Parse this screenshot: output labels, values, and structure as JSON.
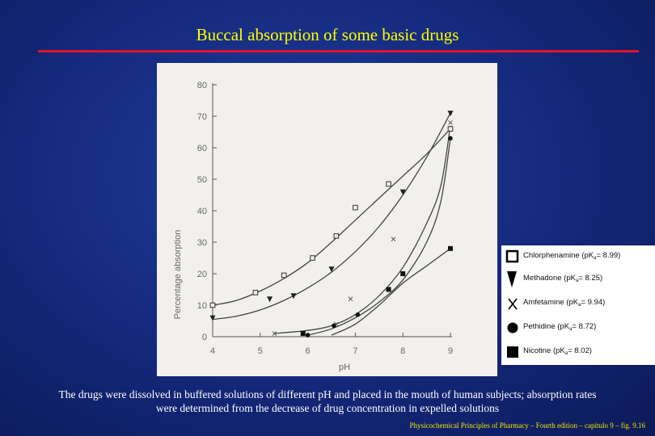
{
  "slide": {
    "title": "Buccal absorption of some basic drugs",
    "caption_line1": "The drugs were dissolved in buffered solutions of different pH and placed in the mouth of human subjects; absorption rates",
    "caption_line2": "were determined from the decrease of drug concentration in expelled solutions",
    "footer": "Physicochemical Principles of Pharmacy – Fourth edition – capitulo 9 – fig. 9.16"
  },
  "colors": {
    "title": "#ffff00",
    "rule": "#e8102a",
    "caption": "#ffffff",
    "footer": "#f2e600",
    "plot_ink": "#555555"
  },
  "legend": [
    {
      "marker": "open-square-icon",
      "name": "Chlorphenamine",
      "pre": "(pK",
      "sub": "a",
      "post": "= 8.99)"
    },
    {
      "marker": "down-triangle-icon",
      "name": "Methadone",
      "pre": "(pK",
      "sub": "a",
      "post": "= 8.25)"
    },
    {
      "marker": "x-cross-icon",
      "name": "Amfetamine",
      "pre": "(pK",
      "sub": "a",
      "post": "= 9.94)"
    },
    {
      "marker": "filled-circle-icon",
      "name": "Pethidine",
      "pre": "(pK",
      "sub": "a",
      "post": "= 8.72)"
    },
    {
      "marker": "filled-square-icon",
      "name": "Nicotine",
      "pre": "(pK",
      "sub": "a",
      "post": "= 8.02)"
    }
  ],
  "chart_data": {
    "type": "scatter",
    "title": "",
    "xlabel": "pH",
    "ylabel": "Percentage absorption",
    "xlim": [
      4,
      9
    ],
    "ylim": [
      0,
      80
    ],
    "xticks": [
      4,
      5,
      6,
      7,
      8,
      9
    ],
    "yticks": [
      0,
      10,
      20,
      30,
      40,
      50,
      60,
      70,
      80
    ],
    "series": [
      {
        "name": "Chlorphenamine",
        "marker": "open-square",
        "points": [
          [
            4.0,
            10
          ],
          [
            4.9,
            14
          ],
          [
            5.5,
            19.5
          ],
          [
            6.1,
            25
          ],
          [
            6.6,
            32
          ],
          [
            7.0,
            41
          ],
          [
            7.7,
            48.5
          ],
          [
            9.0,
            66
          ]
        ],
        "curve": [
          [
            4.0,
            10
          ],
          [
            4.5,
            11.5
          ],
          [
            5.0,
            14.5
          ],
          [
            5.5,
            18.5
          ],
          [
            6.0,
            23.5
          ],
          [
            6.5,
            30
          ],
          [
            7.0,
            37
          ],
          [
            7.5,
            44
          ],
          [
            8.0,
            51
          ],
          [
            8.5,
            58
          ],
          [
            9.0,
            66
          ]
        ]
      },
      {
        "name": "Methadone",
        "marker": "down-triangle",
        "points": [
          [
            4.0,
            6
          ],
          [
            5.2,
            12
          ],
          [
            5.7,
            13
          ],
          [
            6.5,
            21.5
          ],
          [
            8.0,
            46
          ],
          [
            9.0,
            71
          ]
        ],
        "curve": [
          [
            4.0,
            5.5
          ],
          [
            4.5,
            6.5
          ],
          [
            5.0,
            8.5
          ],
          [
            5.5,
            11.5
          ],
          [
            6.0,
            15.5
          ],
          [
            6.5,
            20.5
          ],
          [
            7.0,
            27
          ],
          [
            7.5,
            35
          ],
          [
            8.0,
            45
          ],
          [
            8.5,
            57
          ],
          [
            9.0,
            71
          ]
        ]
      },
      {
        "name": "Amfetamine",
        "marker": "x-cross",
        "points": [
          [
            5.3,
            1
          ],
          [
            6.6,
            4
          ],
          [
            6.9,
            12
          ],
          [
            7.8,
            31
          ],
          [
            9.0,
            68
          ]
        ],
        "curve": [
          [
            5.3,
            1
          ],
          [
            6.0,
            2
          ],
          [
            6.5,
            3.5
          ],
          [
            7.0,
            7
          ],
          [
            7.5,
            13
          ],
          [
            8.0,
            22
          ],
          [
            8.5,
            36
          ],
          [
            8.8,
            48
          ],
          [
            9.0,
            67
          ]
        ]
      },
      {
        "name": "Pethidine",
        "marker": "filled-circle",
        "points": [
          [
            6.0,
            0.5
          ],
          [
            6.55,
            3.5
          ],
          [
            7.05,
            7
          ],
          [
            9.0,
            63
          ]
        ],
        "curve": [
          [
            6.0,
            0.5
          ],
          [
            6.5,
            2.5
          ],
          [
            7.0,
            6
          ],
          [
            7.5,
            11
          ],
          [
            8.0,
            18
          ],
          [
            8.5,
            30
          ],
          [
            8.8,
            43
          ],
          [
            9.0,
            63
          ]
        ]
      },
      {
        "name": "Nicotine",
        "marker": "filled-square",
        "points": [
          [
            5.9,
            1
          ],
          [
            7.7,
            15
          ],
          [
            8.0,
            20
          ],
          [
            9.0,
            28
          ]
        ],
        "curve": [
          [
            6.5,
            0.5
          ],
          [
            7.0,
            4
          ],
          [
            7.5,
            10
          ],
          [
            8.0,
            17
          ],
          [
            8.5,
            22.5
          ],
          [
            9.0,
            28
          ]
        ]
      }
    ]
  }
}
